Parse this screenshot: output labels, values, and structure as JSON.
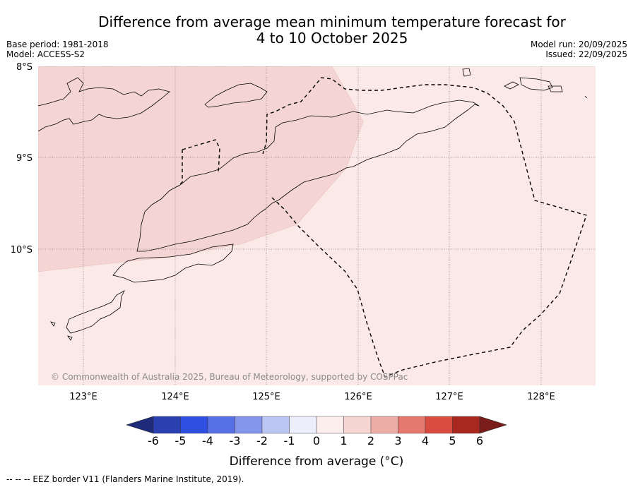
{
  "title_line1": "Difference from average mean minimum temperature forecast for",
  "title_line2": "4 to 10 October 2025",
  "base_period": "Base period: 1981-2018",
  "model": "Model: ACCESS-S2",
  "model_run": "Model run: 20/09/2025",
  "issued": "Issued: 22/09/2025",
  "map": {
    "lat_labels": [
      "8°S",
      "9°S",
      "10°S"
    ],
    "lon_labels": [
      "123°E",
      "124°E",
      "125°E",
      "126°E",
      "127°E",
      "128°E"
    ],
    "copyright": "© Commonwealth of Australia 2025, Bureau of Meteorology, supported by COSPPac",
    "fill_colors": {
      "zone_1_to_2": "#f5d5d3",
      "zone_0_to_1": "#fbe9e7"
    }
  },
  "colorbar": {
    "tick_labels": [
      "-6",
      "-5",
      "-4",
      "-3",
      "-2",
      "-1",
      "0",
      "1",
      "2",
      "3",
      "4",
      "5",
      "6"
    ],
    "colors": [
      "#1e2a7a",
      "#2a3fb0",
      "#2f4fe0",
      "#5870e6",
      "#8496ea",
      "#bcc6f2",
      "#eceffb",
      "#fbeeec",
      "#f6d6d3",
      "#eeaea8",
      "#e5786f",
      "#d94b40",
      "#a8281f",
      "#7a1c1a"
    ],
    "label": "Difference from average (°C)"
  },
  "eez_note": "--  --  -- EEZ border V11 (Flanders Marine Institute, 2019)."
}
